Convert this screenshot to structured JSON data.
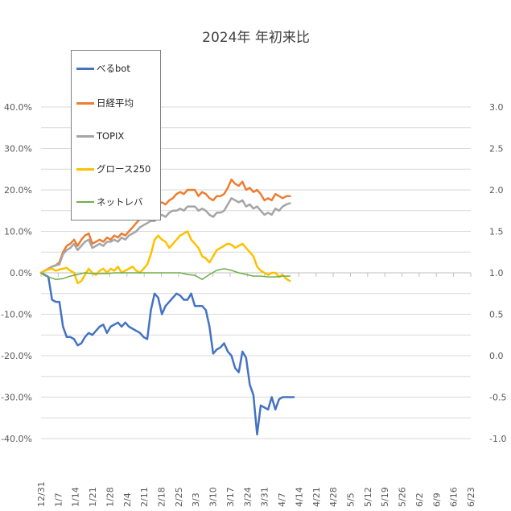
{
  "chart_data": {
    "type": "line",
    "title": "2024年 年初来比",
    "xlabel": "",
    "ylabel": "",
    "x_ticks": [
      "12/31",
      "1/7",
      "1/14",
      "1/21",
      "1/28",
      "2/4",
      "2/11",
      "2/18",
      "2/25",
      "3/3",
      "3/10",
      "3/17",
      "3/24",
      "3/31",
      "4/7",
      "4/14",
      "4/21",
      "4/28",
      "5/5",
      "5/12",
      "5/19",
      "5/26",
      "6/2",
      "6/9",
      "6/16",
      "6/23"
    ],
    "left_axis": {
      "ylim": [
        -0.4,
        0.4
      ],
      "ticks": [
        "40.0%",
        "30.0%",
        "20.0%",
        "10.0%",
        "0.0%",
        "-10.0%",
        "-20.0%",
        "-30.0%",
        "-40.0%"
      ]
    },
    "right_axis": {
      "ylim": [
        -1.0,
        3.0
      ],
      "ticks": [
        "3.0",
        "2.5",
        "2.0",
        "1.5",
        "1.0",
        "0.5",
        "0.0",
        "-0.5",
        "-1.0"
      ]
    },
    "legend_placement": "top-left",
    "grid": true,
    "series": [
      {
        "name": "べるbot",
        "color": "#4472c4",
        "axis": "left",
        "x": [
          0,
          1,
          2,
          3,
          4,
          5,
          6,
          7,
          8,
          9,
          10,
          11,
          12,
          13,
          14,
          15,
          16,
          17,
          18,
          19,
          20,
          21,
          22,
          23,
          24,
          25,
          26,
          27,
          28,
          29,
          30,
          31,
          32,
          33,
          34,
          35,
          36,
          37,
          38,
          39,
          40,
          41,
          42,
          43,
          44,
          45,
          46,
          47,
          48,
          49,
          50,
          51,
          52,
          53,
          54,
          55,
          56,
          57,
          58,
          59,
          60,
          61,
          62,
          63,
          64,
          65,
          66,
          67,
          68,
          69
        ],
        "values": [
          0.0,
          -0.005,
          -0.01,
          -0.065,
          -0.07,
          -0.07,
          -0.13,
          -0.155,
          -0.155,
          -0.16,
          -0.175,
          -0.17,
          -0.155,
          -0.145,
          -0.15,
          -0.14,
          -0.13,
          -0.125,
          -0.145,
          -0.13,
          -0.125,
          -0.12,
          -0.13,
          -0.12,
          -0.13,
          -0.135,
          -0.14,
          -0.145,
          -0.155,
          -0.16,
          -0.09,
          -0.05,
          -0.06,
          -0.1,
          -0.08,
          -0.07,
          -0.06,
          -0.05,
          -0.055,
          -0.065,
          -0.065,
          -0.05,
          -0.08,
          -0.08,
          -0.08,
          -0.09,
          -0.13,
          -0.195,
          -0.185,
          -0.18,
          -0.17,
          -0.19,
          -0.2,
          -0.23,
          -0.24,
          -0.19,
          -0.205,
          -0.27,
          -0.295,
          -0.39,
          -0.32,
          -0.325,
          -0.33,
          -0.3,
          -0.33,
          -0.305,
          -0.3,
          -0.3,
          -0.3,
          -0.3
        ]
      },
      {
        "name": "日経平均",
        "color": "#ed7d31",
        "axis": "left",
        "x": [
          0,
          1,
          2,
          3,
          4,
          5,
          6,
          7,
          8,
          9,
          10,
          11,
          12,
          13,
          14,
          15,
          16,
          17,
          18,
          19,
          20,
          21,
          22,
          23,
          24,
          25,
          26,
          27,
          28,
          29,
          30,
          31,
          32,
          33,
          34,
          35,
          36,
          37,
          38,
          39,
          40,
          41,
          42,
          43,
          44,
          45,
          46,
          47,
          48,
          49,
          50,
          51,
          52,
          53,
          54,
          55,
          56,
          57,
          58,
          59,
          60,
          61,
          62,
          63,
          64,
          65,
          66,
          67,
          68
        ],
        "values": [
          0.0,
          0.005,
          0.01,
          0.015,
          0.018,
          0.025,
          0.05,
          0.065,
          0.07,
          0.08,
          0.065,
          0.08,
          0.09,
          0.095,
          0.07,
          0.075,
          0.08,
          0.075,
          0.085,
          0.08,
          0.09,
          0.085,
          0.095,
          0.09,
          0.1,
          0.11,
          0.12,
          0.13,
          0.14,
          0.145,
          0.15,
          0.15,
          0.165,
          0.17,
          0.165,
          0.175,
          0.18,
          0.19,
          0.195,
          0.19,
          0.2,
          0.2,
          0.2,
          0.185,
          0.195,
          0.19,
          0.18,
          0.175,
          0.185,
          0.185,
          0.19,
          0.205,
          0.225,
          0.215,
          0.21,
          0.22,
          0.2,
          0.205,
          0.195,
          0.2,
          0.19,
          0.175,
          0.18,
          0.175,
          0.19,
          0.185,
          0.18,
          0.185,
          0.185
        ]
      },
      {
        "name": "TOPIX",
        "color": "#a5a5a5",
        "axis": "left",
        "x": [
          0,
          1,
          2,
          3,
          4,
          5,
          6,
          7,
          8,
          9,
          10,
          11,
          12,
          13,
          14,
          15,
          16,
          17,
          18,
          19,
          20,
          21,
          22,
          23,
          24,
          25,
          26,
          27,
          28,
          29,
          30,
          31,
          32,
          33,
          34,
          35,
          36,
          37,
          38,
          39,
          40,
          41,
          42,
          43,
          44,
          45,
          46,
          47,
          48,
          49,
          50,
          51,
          52,
          53,
          54,
          55,
          56,
          57,
          58,
          59,
          60,
          61,
          62,
          63,
          64,
          65,
          66,
          67,
          68
        ],
        "values": [
          0.0,
          0.005,
          0.01,
          0.015,
          0.018,
          0.02,
          0.045,
          0.055,
          0.06,
          0.07,
          0.055,
          0.065,
          0.075,
          0.08,
          0.06,
          0.065,
          0.07,
          0.065,
          0.075,
          0.075,
          0.08,
          0.075,
          0.085,
          0.08,
          0.09,
          0.095,
          0.1,
          0.11,
          0.115,
          0.12,
          0.125,
          0.125,
          0.135,
          0.14,
          0.135,
          0.145,
          0.15,
          0.15,
          0.155,
          0.15,
          0.16,
          0.16,
          0.16,
          0.15,
          0.155,
          0.15,
          0.14,
          0.135,
          0.145,
          0.145,
          0.15,
          0.165,
          0.18,
          0.175,
          0.17,
          0.175,
          0.16,
          0.165,
          0.155,
          0.16,
          0.15,
          0.14,
          0.145,
          0.14,
          0.155,
          0.15,
          0.16,
          0.165,
          0.168
        ]
      },
      {
        "name": "グロース250",
        "color": "#ffc000",
        "axis": "left",
        "x": [
          0,
          1,
          2,
          3,
          4,
          5,
          6,
          7,
          8,
          9,
          10,
          11,
          12,
          13,
          14,
          15,
          16,
          17,
          18,
          19,
          20,
          21,
          22,
          23,
          24,
          25,
          26,
          27,
          28,
          29,
          30,
          31,
          32,
          33,
          34,
          35,
          36,
          37,
          38,
          39,
          40,
          41,
          42,
          43,
          44,
          45,
          46,
          47,
          48,
          49,
          50,
          51,
          52,
          53,
          54,
          55,
          56,
          57,
          58,
          59,
          60,
          61,
          62,
          63,
          64,
          65,
          66,
          67,
          68
        ],
        "values": [
          0.0,
          0.005,
          0.008,
          0.01,
          0.005,
          0.008,
          0.01,
          0.012,
          0.005,
          0.0,
          -0.025,
          -0.02,
          -0.005,
          0.01,
          0.0,
          -0.005,
          0.005,
          0.01,
          0.0,
          0.01,
          0.005,
          0.015,
          0.0,
          0.005,
          0.01,
          0.015,
          0.005,
          0.0,
          0.01,
          0.02,
          0.045,
          0.08,
          0.09,
          0.08,
          0.075,
          0.06,
          0.07,
          0.08,
          0.09,
          0.095,
          0.1,
          0.08,
          0.07,
          0.06,
          0.04,
          0.035,
          0.025,
          0.04,
          0.055,
          0.06,
          0.065,
          0.07,
          0.068,
          0.06,
          0.065,
          0.07,
          0.06,
          0.05,
          0.04,
          0.015,
          0.005,
          0.0,
          -0.005,
          0.0,
          0.0,
          -0.01,
          -0.005,
          -0.015,
          -0.02
        ]
      },
      {
        "name": "ネットレバ",
        "color": "#70ad47",
        "axis": "right",
        "x": [
          0,
          2,
          4,
          6,
          8,
          10,
          12,
          14,
          16,
          18,
          20,
          22,
          24,
          26,
          28,
          30,
          32,
          34,
          36,
          38,
          40,
          42,
          44,
          46,
          48,
          50,
          52,
          54,
          56,
          58,
          60,
          62,
          64,
          66,
          68
        ],
        "values": [
          1.0,
          0.95,
          0.92,
          0.93,
          0.96,
          0.98,
          1.0,
          0.99,
          0.99,
          0.99,
          1.0,
          1.0,
          1.0,
          1.0,
          1.0,
          1.0,
          1.0,
          1.0,
          1.0,
          1.0,
          0.98,
          0.97,
          0.92,
          0.98,
          1.03,
          1.05,
          1.03,
          1.0,
          0.98,
          0.96,
          0.96,
          0.95,
          0.95,
          0.96,
          0.96
        ]
      }
    ]
  }
}
